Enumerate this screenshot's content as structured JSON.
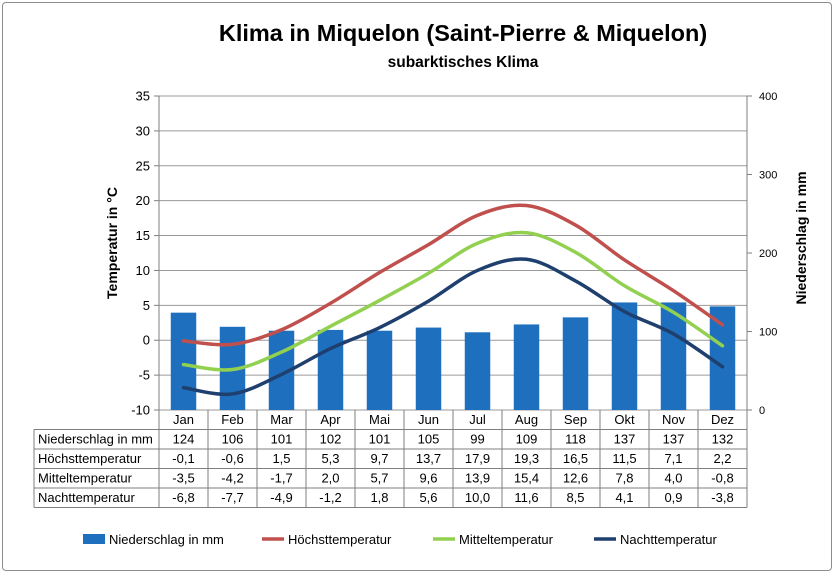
{
  "chart_data": {
    "type": "bar",
    "title": "Klima in Miquelon (Saint-Pierre & Miquelon)",
    "subtitle": "subarktisches Klima",
    "ylabel": "Temperatur in °C",
    "y2label": "Niederschlag in mm",
    "ylim": [
      -10,
      35
    ],
    "y2lim": [
      0,
      400
    ],
    "yticks": [
      "-10",
      "-5",
      "0",
      "5",
      "10",
      "15",
      "20",
      "25",
      "30",
      "35"
    ],
    "y2ticks": [
      "0",
      "100",
      "200",
      "300",
      "400"
    ],
    "grid": true,
    "legend_position": "bottom",
    "categories": [
      "Jan",
      "Feb",
      "Mar",
      "Apr",
      "Mai",
      "Jun",
      "Jul",
      "Aug",
      "Sep",
      "Okt",
      "Nov",
      "Dez"
    ],
    "series": [
      {
        "name": "Niederschlag in mm",
        "type": "bar",
        "axis": "right",
        "color": "#1f6fbf",
        "values": [
          124,
          106,
          101,
          102,
          101,
          105,
          99,
          109,
          118,
          137,
          137,
          132
        ],
        "labels": [
          "124",
          "106",
          "101",
          "102",
          "101",
          "105",
          "99",
          "109",
          "118",
          "137",
          "137",
          "132"
        ]
      },
      {
        "name": "Höchsttemperatur",
        "type": "line",
        "axis": "left",
        "color": "#c0504d",
        "values": [
          -0.1,
          -0.6,
          1.5,
          5.3,
          9.7,
          13.7,
          17.9,
          19.3,
          16.5,
          11.5,
          7.1,
          2.2
        ],
        "labels": [
          "-0,1",
          "-0,6",
          "1,5",
          "5,3",
          "9,7",
          "13,7",
          "17,9",
          "19,3",
          "16,5",
          "11,5",
          "7,1",
          "2,2"
        ]
      },
      {
        "name": "Mitteltemperatur",
        "type": "line",
        "axis": "left",
        "color": "#92d050",
        "values": [
          -3.5,
          -4.2,
          -1.7,
          2.0,
          5.7,
          9.6,
          13.9,
          15.4,
          12.6,
          7.8,
          4.0,
          -0.8
        ],
        "labels": [
          "-3,5",
          "-4,2",
          "-1,7",
          "2,0",
          "5,7",
          "9,6",
          "13,9",
          "15,4",
          "12,6",
          "7,8",
          "4,0",
          "-0,8"
        ]
      },
      {
        "name": "Nachttemperatur",
        "type": "line",
        "axis": "left",
        "color": "#1f3f6e",
        "values": [
          -6.8,
          -7.7,
          -4.9,
          -1.2,
          1.8,
          5.6,
          10.0,
          11.6,
          8.5,
          4.1,
          0.9,
          -3.8
        ],
        "labels": [
          "-6,8",
          "-7,7",
          "-4,9",
          "-1,2",
          "1,8",
          "5,6",
          "10,0",
          "11,6",
          "8,5",
          "4,1",
          "0,9",
          "-3,8"
        ]
      }
    ]
  }
}
